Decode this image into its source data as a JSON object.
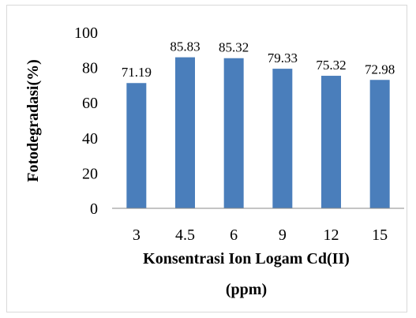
{
  "chart_data": {
    "type": "bar",
    "categories": [
      "3",
      "4.5",
      "6",
      "9",
      "12",
      "15"
    ],
    "values": [
      71.19,
      85.83,
      85.32,
      79.33,
      75.32,
      72.98
    ],
    "data_labels": [
      "71.19",
      "85.83",
      "85.32",
      "79.33",
      "75.32",
      "72.98"
    ],
    "xlabel_line1": "Konsentrasi  Ion Logam Cd(II)",
    "xlabel_line2": "(ppm)",
    "ylabel": "Fotodegradasi(%)",
    "ylim": [
      0,
      100
    ],
    "yticks": [
      "0",
      "20",
      "40",
      "60",
      "80",
      "100"
    ],
    "grid": false,
    "legend": "none",
    "bar_color": "#4a7ebb"
  }
}
